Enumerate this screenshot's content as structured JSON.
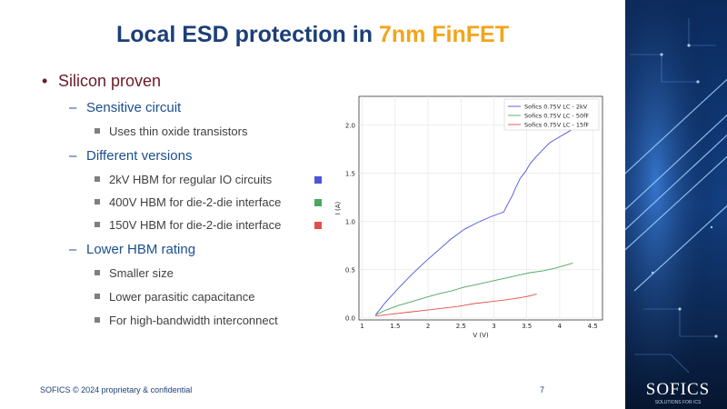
{
  "slide": {
    "title_main": "Local ESD protection in ",
    "title_highlight": "7nm FinFET",
    "bullets": {
      "l1_marker": "•",
      "l2_marker": "–",
      "silicon_proven": "Silicon proven",
      "sensitive_circuit": "Sensitive circuit",
      "thin_oxide": "Uses thin oxide transistors",
      "different_versions": "Different versions",
      "v_2kv": "2kV HBM for regular IO circuits",
      "v_400v": "400V HBM for die-2-die interface",
      "v_150v": "150V HBM for die-2-die interface",
      "lower_hbm": "Lower HBM rating",
      "smaller_size": "Smaller size",
      "lower_cap": "Lower parasitic capacitance",
      "high_bw": "For high-bandwidth interconnect"
    },
    "swatch_colors": {
      "v_2kv": "#4a56d8",
      "v_400v": "#4aa85c",
      "v_150v": "#e0504a"
    },
    "footer": "SOFICS © 2024 proprietary & confidential",
    "page_number": "7",
    "logo_text": "SOFICS",
    "logo_sub": "SOLUTIONS FOR ICS",
    "accent_colors": {
      "title": "#1c3f77",
      "highlight": "#f2a51a",
      "level1": "#6b1a26",
      "level2": "#1c4f8f"
    }
  },
  "chart_data": {
    "type": "line",
    "xlabel": "V (V)",
    "ylabel": "I (A)",
    "xlim": [
      0.95,
      4.65
    ],
    "ylim": [
      -0.02,
      2.3
    ],
    "xticks": [
      1,
      1.5,
      2,
      2.5,
      3,
      3.5,
      4,
      4.5
    ],
    "xtick_labels": [
      "1",
      "1.5",
      "2",
      "2.5",
      "3",
      "3.5",
      "4",
      "4.5"
    ],
    "yticks": [
      0.0,
      0.5,
      1.0,
      1.5,
      2.0
    ],
    "ytick_labels": [
      "0.0",
      "0.5",
      "1.0",
      "1.5",
      "2.0"
    ],
    "grid": true,
    "legend_position": "top-right",
    "series": [
      {
        "name": "Sofics 0.75V LC - 2kV",
        "color": "#4a56d8",
        "x": [
          1.2,
          1.35,
          1.55,
          1.75,
          1.95,
          2.15,
          2.35,
          2.55,
          2.75,
          2.95,
          3.15,
          3.2,
          3.28,
          3.33,
          3.4,
          3.48,
          3.55,
          3.65,
          3.75,
          3.85,
          4.0,
          4.15,
          4.23
        ],
        "y": [
          0.03,
          0.16,
          0.31,
          0.45,
          0.58,
          0.7,
          0.82,
          0.92,
          0.99,
          1.05,
          1.1,
          1.17,
          1.27,
          1.35,
          1.45,
          1.52,
          1.6,
          1.68,
          1.75,
          1.82,
          1.88,
          1.94,
          1.98
        ]
      },
      {
        "name": "Sofics 0.75V LC - 50fF",
        "color": "#4aa85c",
        "x": [
          1.2,
          1.35,
          1.55,
          1.75,
          1.95,
          2.15,
          2.35,
          2.55,
          2.75,
          2.95,
          3.15,
          3.35,
          3.55,
          3.75,
          3.95,
          4.1,
          4.2
        ],
        "y": [
          0.03,
          0.08,
          0.13,
          0.17,
          0.21,
          0.25,
          0.28,
          0.32,
          0.35,
          0.38,
          0.41,
          0.44,
          0.47,
          0.49,
          0.52,
          0.55,
          0.57
        ]
      },
      {
        "name": "Sofics 0.75V LC - 15fF",
        "color": "#e0504a",
        "x": [
          1.2,
          1.45,
          1.7,
          1.95,
          2.2,
          2.45,
          2.7,
          2.95,
          3.2,
          3.4,
          3.55,
          3.65
        ],
        "y": [
          0.02,
          0.04,
          0.06,
          0.08,
          0.1,
          0.12,
          0.15,
          0.17,
          0.19,
          0.21,
          0.23,
          0.25
        ]
      }
    ]
  }
}
